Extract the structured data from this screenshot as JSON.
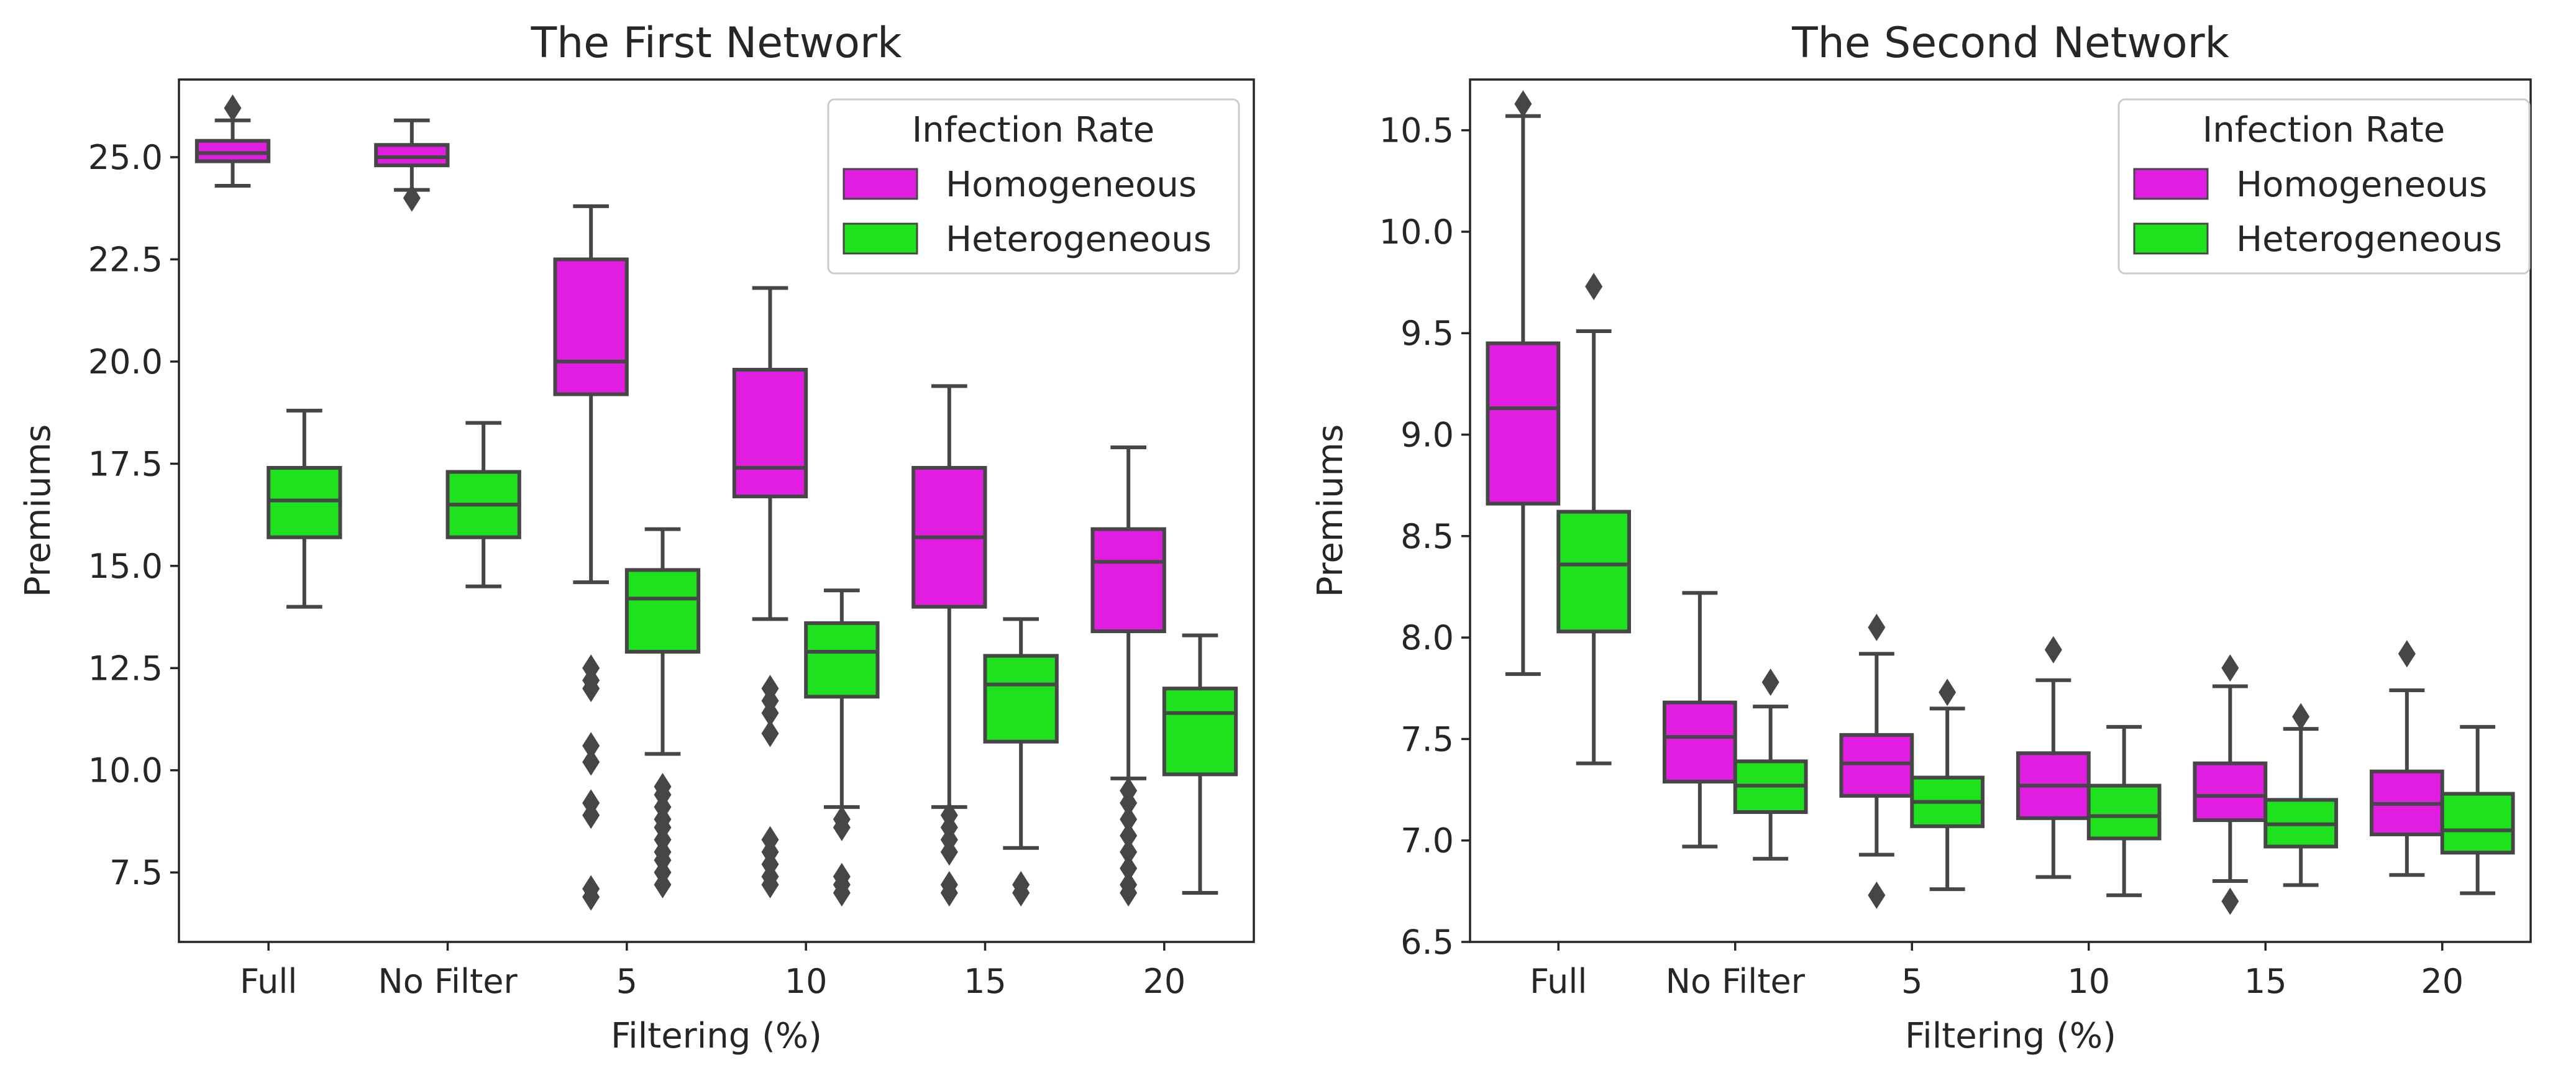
{
  "colors": {
    "homogeneous": "#e21de2",
    "heterogeneous": "#1de21d",
    "edge": "#464646"
  },
  "chart_data": [
    {
      "type": "box",
      "title": "The First Network",
      "xlabel": "Filtering (%)",
      "ylabel": "Premiums",
      "ylim": [
        5.8,
        26.9
      ],
      "yticks": [
        7.5,
        10.0,
        12.5,
        15.0,
        17.5,
        20.0,
        22.5,
        25.0
      ],
      "ytick_labels": [
        "7.5",
        "10.0",
        "12.5",
        "15.0",
        "17.5",
        "20.0",
        "22.5",
        "25.0"
      ],
      "categories": [
        "Full",
        "No Filter",
        "5",
        "10",
        "15",
        "20"
      ],
      "legend": {
        "title": "Infection Rate",
        "entries": [
          "Homogeneous",
          "Heterogeneous"
        ],
        "position": "upper right"
      },
      "series": [
        {
          "name": "Homogeneous",
          "boxes": [
            {
              "whislo": 24.3,
              "q1": 24.9,
              "med": 25.1,
              "q3": 25.4,
              "whishi": 25.9,
              "fliers": [
                26.2
              ]
            },
            {
              "whislo": 24.2,
              "q1": 24.8,
              "med": 25.0,
              "q3": 25.3,
              "whishi": 25.9,
              "fliers": [
                24.0
              ]
            },
            {
              "whislo": 14.6,
              "q1": 19.2,
              "med": 20.0,
              "q3": 22.5,
              "whishi": 23.8,
              "fliers": [
                12.5,
                12.2,
                12.0,
                10.6,
                10.2,
                9.2,
                8.9,
                7.1,
                6.9
              ]
            },
            {
              "whislo": 13.7,
              "q1": 16.7,
              "med": 17.4,
              "q3": 19.8,
              "whishi": 21.8,
              "fliers": [
                12.0,
                11.7,
                11.4,
                10.9,
                8.3,
                8.0,
                7.7,
                7.4,
                7.2
              ]
            },
            {
              "whislo": 9.1,
              "q1": 14.0,
              "med": 15.7,
              "q3": 17.4,
              "whishi": 19.4,
              "fliers": [
                8.9,
                8.6,
                8.3,
                8.0,
                7.2,
                7.0
              ]
            },
            {
              "whislo": 9.8,
              "q1": 13.4,
              "med": 15.1,
              "q3": 15.9,
              "whishi": 17.9,
              "fliers": [
                9.5,
                9.2,
                8.8,
                8.4,
                8.0,
                7.6,
                7.2,
                7.0
              ]
            }
          ]
        },
        {
          "name": "Heterogeneous",
          "boxes": [
            {
              "whislo": 14.0,
              "q1": 15.7,
              "med": 16.6,
              "q3": 17.4,
              "whishi": 18.8,
              "fliers": []
            },
            {
              "whislo": 14.5,
              "q1": 15.7,
              "med": 16.5,
              "q3": 17.3,
              "whishi": 18.5,
              "fliers": []
            },
            {
              "whislo": 10.4,
              "q1": 12.9,
              "med": 14.2,
              "q3": 14.9,
              "whishi": 15.9,
              "fliers": [
                9.6,
                9.4,
                9.1,
                8.8,
                8.6,
                8.3,
                8.0,
                7.8,
                7.5,
                7.2
              ]
            },
            {
              "whislo": 9.1,
              "q1": 11.8,
              "med": 12.9,
              "q3": 13.6,
              "whishi": 14.4,
              "fliers": [
                8.8,
                8.6,
                7.4,
                7.2,
                7.0
              ]
            },
            {
              "whislo": 8.1,
              "q1": 10.7,
              "med": 12.1,
              "q3": 12.8,
              "whishi": 13.7,
              "fliers": [
                7.2,
                7.0
              ]
            },
            {
              "whislo": 7.0,
              "q1": 9.9,
              "med": 11.4,
              "q3": 12.0,
              "whishi": 13.3,
              "fliers": []
            }
          ]
        }
      ]
    },
    {
      "type": "box",
      "title": "The Second Network",
      "xlabel": "Filtering (%)",
      "ylabel": "Premiums",
      "ylim": [
        6.5,
        10.75
      ],
      "yticks": [
        6.5,
        7.0,
        7.5,
        8.0,
        8.5,
        9.0,
        9.5,
        10.0,
        10.5
      ],
      "ytick_labels": [
        "6.5",
        "7.0",
        "7.5",
        "8.0",
        "8.5",
        "9.0",
        "9.5",
        "10.0",
        "10.5"
      ],
      "categories": [
        "Full",
        "No Filter",
        "5",
        "10",
        "15",
        "20"
      ],
      "legend": {
        "title": "Infection Rate",
        "entries": [
          "Homogeneous",
          "Heterogeneous"
        ],
        "position": "upper right"
      },
      "series": [
        {
          "name": "Homogeneous",
          "boxes": [
            {
              "whislo": 7.82,
              "q1": 8.66,
              "med": 9.13,
              "q3": 9.45,
              "whishi": 10.57,
              "fliers": [
                10.63
              ]
            },
            {
              "whislo": 6.97,
              "q1": 7.29,
              "med": 7.51,
              "q3": 7.68,
              "whishi": 8.22,
              "fliers": []
            },
            {
              "whislo": 6.93,
              "q1": 7.22,
              "med": 7.38,
              "q3": 7.52,
              "whishi": 7.92,
              "fliers": [
                8.05,
                6.73
              ]
            },
            {
              "whislo": 6.82,
              "q1": 7.11,
              "med": 7.27,
              "q3": 7.43,
              "whishi": 7.79,
              "fliers": [
                7.94
              ]
            },
            {
              "whislo": 6.8,
              "q1": 7.1,
              "med": 7.22,
              "q3": 7.38,
              "whishi": 7.76,
              "fliers": [
                7.85,
                6.7
              ]
            },
            {
              "whislo": 6.83,
              "q1": 7.03,
              "med": 7.18,
              "q3": 7.34,
              "whishi": 7.74,
              "fliers": [
                7.92
              ]
            }
          ]
        },
        {
          "name": "Heterogeneous",
          "boxes": [
            {
              "whislo": 7.38,
              "q1": 8.03,
              "med": 8.36,
              "q3": 8.62,
              "whishi": 9.51,
              "fliers": [
                9.73
              ]
            },
            {
              "whislo": 6.91,
              "q1": 7.14,
              "med": 7.27,
              "q3": 7.39,
              "whishi": 7.66,
              "fliers": [
                7.78
              ]
            },
            {
              "whislo": 6.76,
              "q1": 7.07,
              "med": 7.19,
              "q3": 7.31,
              "whishi": 7.65,
              "fliers": [
                7.73
              ]
            },
            {
              "whislo": 6.73,
              "q1": 7.01,
              "med": 7.12,
              "q3": 7.27,
              "whishi": 7.56,
              "fliers": []
            },
            {
              "whislo": 6.78,
              "q1": 6.97,
              "med": 7.08,
              "q3": 7.2,
              "whishi": 7.55,
              "fliers": [
                7.61
              ]
            },
            {
              "whislo": 6.74,
              "q1": 6.94,
              "med": 7.05,
              "q3": 7.23,
              "whishi": 7.56,
              "fliers": []
            }
          ]
        }
      ]
    }
  ]
}
